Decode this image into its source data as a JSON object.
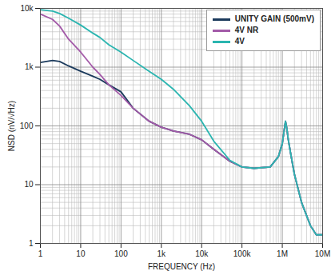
{
  "chart_data": {
    "type": "line",
    "x_label": "FREQUENCY (Hz)",
    "y_label": "NSD (nV/√Hz)",
    "log": true,
    "grid": true,
    "legend": "top-right",
    "xlim": [
      1,
      10000000
    ],
    "ylim": [
      1,
      10000
    ],
    "xticks": [
      1,
      10,
      100,
      {
        "value": 1000,
        "label": "1k"
      },
      {
        "value": 10000,
        "label": "10k"
      },
      {
        "value": 100000,
        "label": "100k"
      },
      {
        "value": 1000000,
        "label": "1M"
      },
      {
        "value": 10000000,
        "label": "10M"
      }
    ],
    "yticks": [
      1,
      10,
      100,
      {
        "value": 1000,
        "label": "1k"
      },
      {
        "value": 10000,
        "label": "10k"
      }
    ],
    "x": [
      1,
      2,
      3,
      5,
      10,
      20,
      30,
      50,
      100,
      200,
      500,
      1000,
      2000,
      5000,
      10000,
      20000,
      50000,
      100000,
      200000,
      500000,
      800000,
      1000000,
      1200000,
      1300000,
      1400000,
      1600000,
      2000000,
      3000000,
      5000000,
      7000000,
      10000000
    ],
    "series": [
      {
        "name": "UNITY GAIN (500mV)",
        "color": "#1b3a5c",
        "values": [
          1200,
          1300,
          1250,
          1050,
          850,
          700,
          620,
          500,
          380,
          200,
          120,
          95,
          82,
          72,
          58,
          40,
          25,
          20,
          19,
          20,
          30,
          50,
          120,
          90,
          60,
          35,
          15,
          5,
          2,
          1.4,
          1.4
        ]
      },
      {
        "name": "4V NR",
        "color": "#a35aa8",
        "values": [
          8000,
          6500,
          5000,
          3000,
          1800,
          1000,
          750,
          500,
          330,
          200,
          120,
          95,
          82,
          72,
          58,
          40,
          25,
          20,
          19,
          20,
          30,
          50,
          120,
          90,
          60,
          35,
          15,
          5,
          2,
          1.4,
          1.4
        ]
      },
      {
        "name": "4V",
        "color": "#2bb5b0",
        "values": [
          9500,
          9000,
          8200,
          6800,
          5200,
          3800,
          3200,
          2400,
          1800,
          1300,
          850,
          620,
          420,
          220,
          120,
          55,
          26,
          20,
          19,
          20,
          30,
          50,
          120,
          90,
          60,
          35,
          15,
          5,
          2,
          1.4,
          1.4
        ]
      }
    ]
  }
}
